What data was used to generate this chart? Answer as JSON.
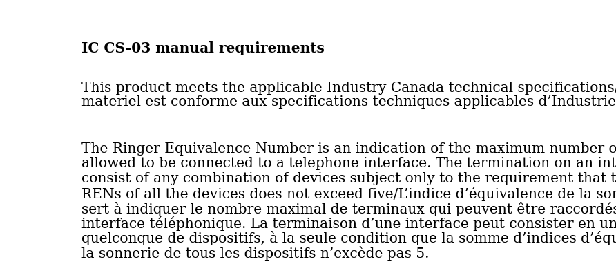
{
  "title": "IC CS-03 manual requirements",
  "para1_line1": "This product meets the applicable Industry Canada technical specifications/Le présent",
  "para1_line2": "materiel est conforme aux specifications techniques applicables d’Industrie Canada.",
  "para2_line1": "The Ringer Equivalence Number is an indication of the maximum number of devices",
  "para2_line2": "allowed to be connected to a telephone interface. The termination on an interface may",
  "para2_line3": "consist of any combination of devices subject only to the requirement that the sum of the",
  "para2_line4": "RENs of all the devices does not exceed five/L’indice d’équivalence de la sonnerie (IES)",
  "para2_line5": "sert à indiquer le nombre maximal de terminaux qui peuvent être raccordés à une",
  "para2_line6": "interface téléphonique. La terminaison d’une interface peut consister en une combinaison",
  "para2_line7": "quelconque de dispositifs, à la seule condition que la somme d’indices d’équivalence de",
  "para2_line8": "la sonnerie de tous les dispositifs n’excède pas 5.",
  "background_color": "#ffffff",
  "text_color": "#000000",
  "title_fontsize": 14.5,
  "body_fontsize": 14.5,
  "title_font_weight": "bold",
  "fig_width": 8.92,
  "fig_height": 3.95,
  "dpi": 100
}
